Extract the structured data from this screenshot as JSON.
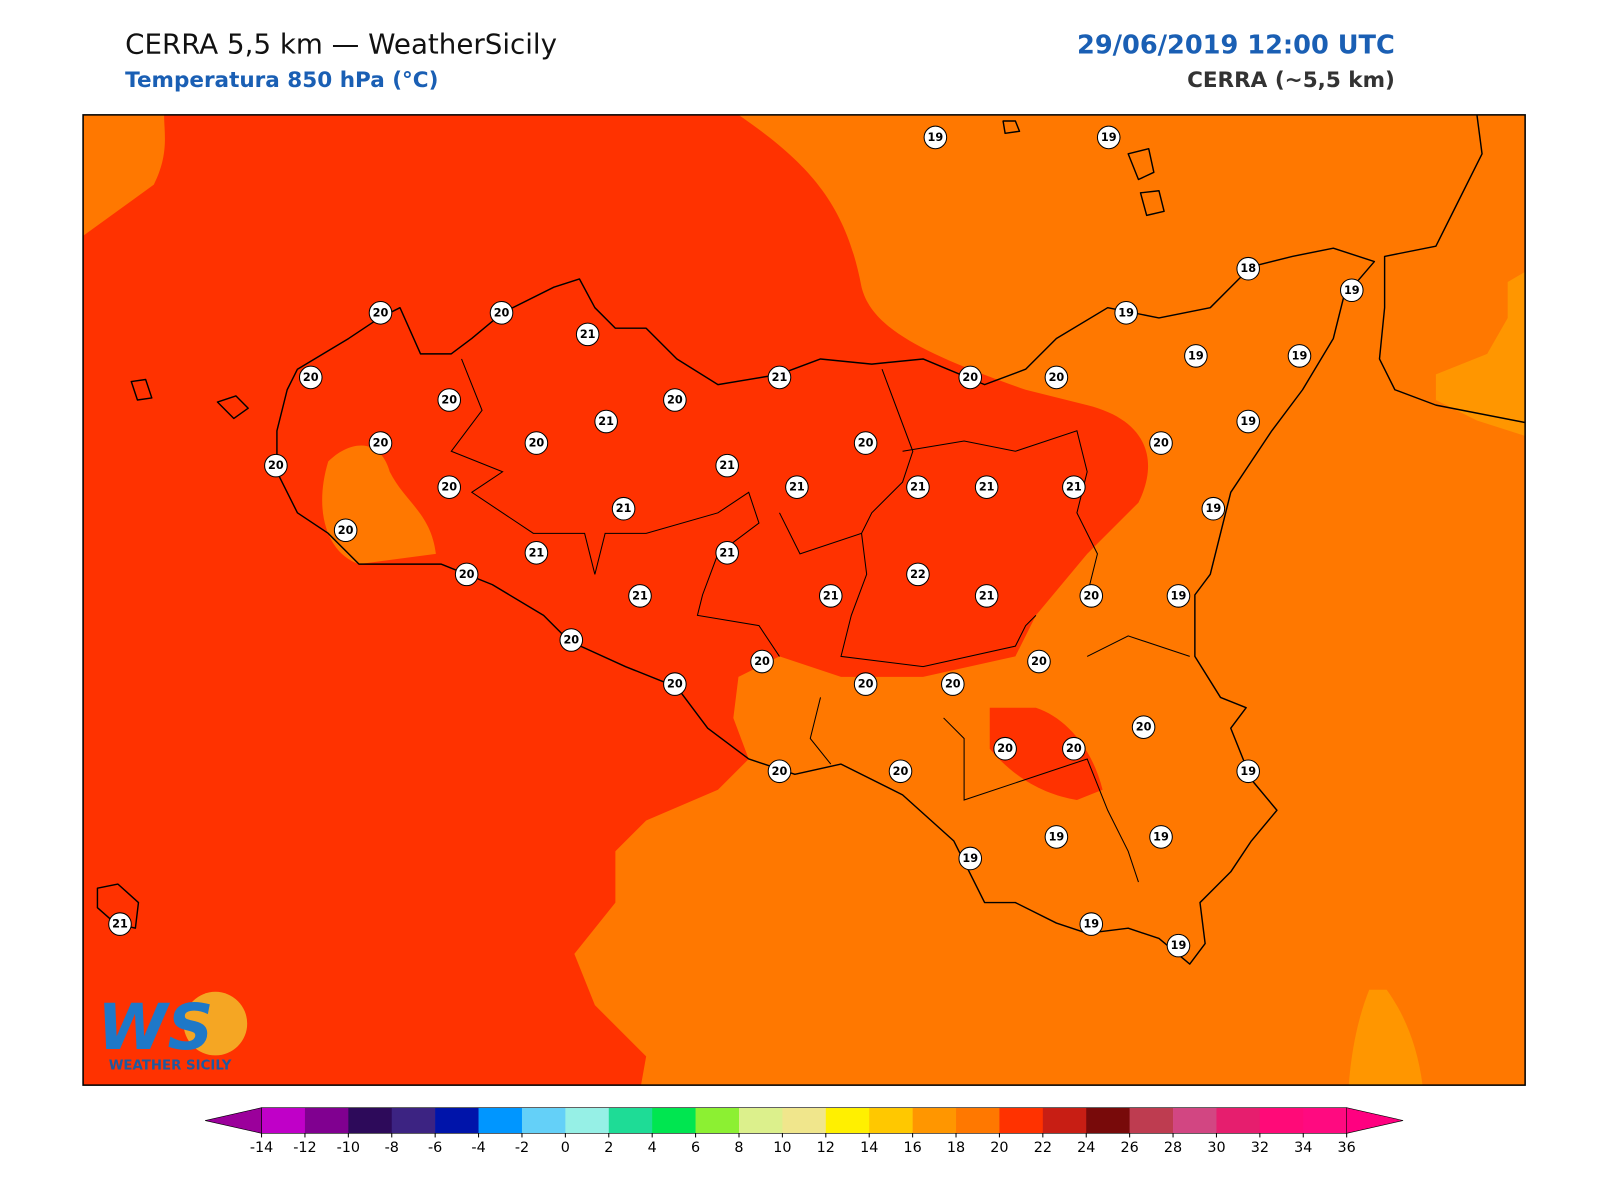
{
  "header": {
    "title": "CERRA 5,5 km — WeatherSicily",
    "subtitle": "Temperatura 850 hPa (°C)",
    "valid_time": "29/06/2019 12:00 UTC",
    "model": "CERRA (~5,5 km)"
  },
  "map": {
    "stations": [
      19,
      19,
      18,
      19,
      20,
      20,
      21,
      19,
      20,
      20,
      20,
      21,
      20,
      20,
      19,
      19,
      19,
      21,
      20,
      20,
      20,
      20,
      20,
      21,
      20,
      21,
      21,
      21,
      21,
      19,
      21,
      20,
      21,
      21,
      20,
      22,
      21,
      21,
      21,
      20,
      19,
      20,
      20,
      20,
      20,
      20,
      20,
      20,
      20,
      20,
      20,
      20,
      19,
      19,
      19,
      19,
      19,
      19,
      21
    ]
  },
  "logo": {
    "mark": "WS",
    "text": "WEATHER SICILY"
  },
  "colorbar": {
    "ticks": [
      -14,
      -12,
      -10,
      -8,
      -6,
      -4,
      -2,
      0,
      2,
      4,
      6,
      8,
      10,
      12,
      14,
      16,
      18,
      20,
      22,
      24,
      26,
      28,
      30,
      32,
      34,
      36
    ],
    "colors": [
      "#c000c8",
      "#800090",
      "#2d0a5a",
      "#3c2382",
      "#0014aa",
      "#0096ff",
      "#64d0f8",
      "#96f0e6",
      "#1edc96",
      "#00e650",
      "#8cf032",
      "#dcf08c",
      "#f0e68c",
      "#fff000",
      "#ffc800",
      "#ff9600",
      "#ff7800",
      "#ff3200",
      "#c81e14",
      "#780a0a",
      "#be3c50",
      "#d24682",
      "#e61e6e",
      "#ff0a78",
      "#ff0a80"
    ],
    "under_color": "#9b009b",
    "over_color": "#ff0080"
  }
}
